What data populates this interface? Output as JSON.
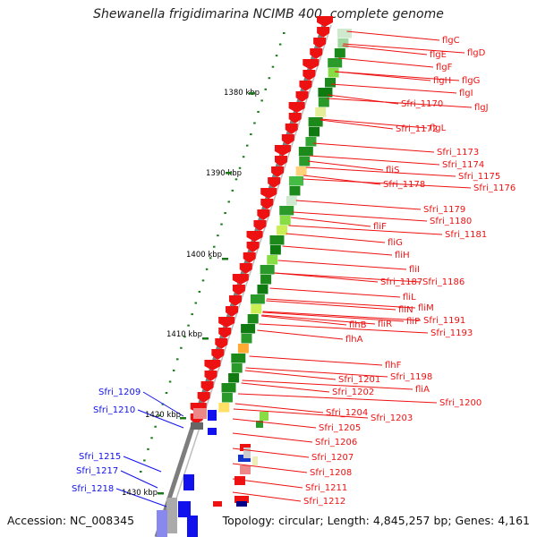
{
  "title": "Shewanella frigidimarina NCIMB 400, complete genome",
  "footer": {
    "accession": "Accession: NC_008345",
    "summary": "Topology: circular; Length: 4,845,257 bp; Genes: 4,161"
  },
  "colors": {
    "forward_gene": "#ee1111",
    "reverse_gene": "#1111ee",
    "backbone": "#888888",
    "tick": "#1a7a1a",
    "gc_dark": "#1a8a1a",
    "gc_light": "#88dd44"
  },
  "kbp_ticks": [
    "1380 kbp",
    "1390 kbp",
    "1400 kbp",
    "1410 kbp",
    "1420 kbp",
    "1430 kbp"
  ],
  "right_labels": [
    "flgC",
    "flgD",
    "flgE",
    "flgF",
    "flgH",
    "flgG",
    "flgI",
    "Sfri_1170",
    "flgJ",
    "Sfri_1172",
    "flgL",
    "Sfri_1173",
    "Sfri_1174",
    "fliS",
    "Sfri_1175",
    "Sfri_1178",
    "Sfri_1176",
    "Sfri_1179",
    "Sfri_1180",
    "fliF",
    "Sfri_1181",
    "fliG",
    "fliH",
    "fliI",
    "Sfri_1187",
    "Sfri_1186",
    "fliL",
    "fliM",
    "fliN",
    "fliP",
    "Sfri_1191",
    "flhB",
    "fliR",
    "Sfri_1193",
    "flhA",
    "flhF",
    "Sfri_1198",
    "Sfri_1201",
    "fliA",
    "Sfri_1202",
    "Sfri_1200",
    "Sfri_1204",
    "Sfri_1203",
    "Sfri_1205",
    "Sfri_1206",
    "Sfri_1207",
    "Sfri_1208",
    "Sfri_1211",
    "Sfri_1212"
  ],
  "left_labels": [
    "Sfri_1209",
    "Sfri_1210",
    "Sfri_1215",
    "Sfri_1217",
    "Sfri_1218"
  ]
}
